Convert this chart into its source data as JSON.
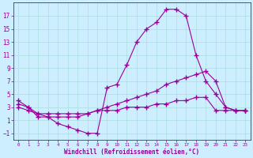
{
  "xlabel": "Windchill (Refroidissement éolien,°C)",
  "bg_color": "#cceeff",
  "line_color": "#990099",
  "grid_color": "#aadddd",
  "xlim": [
    -0.5,
    23.5
  ],
  "ylim": [
    -2,
    19
  ],
  "xticks": [
    0,
    1,
    2,
    3,
    4,
    5,
    6,
    7,
    8,
    9,
    10,
    11,
    12,
    13,
    14,
    15,
    16,
    17,
    18,
    19,
    20,
    21,
    22,
    23
  ],
  "yticks": [
    -1,
    1,
    3,
    5,
    7,
    9,
    11,
    13,
    15,
    17
  ],
  "line1_x": [
    0,
    1,
    2,
    3,
    4,
    5,
    6,
    7,
    8,
    9,
    10,
    11,
    12,
    13,
    14,
    15,
    16,
    17,
    18,
    19,
    20,
    21,
    22,
    23
  ],
  "line1_y": [
    4,
    3,
    1.5,
    1.5,
    0.5,
    0,
    -0.5,
    -1,
    -1,
    6,
    6.5,
    9.5,
    13,
    15,
    16,
    18,
    18,
    17,
    11,
    7,
    5,
    3,
    2.5,
    2.5
  ],
  "line2_x": [
    0,
    1,
    2,
    3,
    4,
    5,
    6,
    7,
    8,
    9,
    10,
    11,
    12,
    13,
    14,
    15,
    16,
    17,
    18,
    19,
    20,
    21,
    22,
    23
  ],
  "line2_y": [
    3.5,
    3,
    2,
    2,
    2,
    2,
    2,
    2,
    2.5,
    3,
    3.5,
    4,
    4.5,
    5,
    5.5,
    6.5,
    7,
    7.5,
    8,
    8.5,
    7,
    3,
    2.5,
    2.5
  ],
  "line3_x": [
    0,
    1,
    2,
    3,
    4,
    5,
    6,
    7,
    8,
    9,
    10,
    11,
    12,
    13,
    14,
    15,
    16,
    17,
    18,
    19,
    20,
    21,
    22,
    23
  ],
  "line3_y": [
    3,
    2.5,
    2,
    1.5,
    1.5,
    1.5,
    1.5,
    2,
    2.5,
    2.5,
    2.5,
    3,
    3,
    3,
    3.5,
    3.5,
    4,
    4,
    4.5,
    4.5,
    2.5,
    2.5,
    2.5,
    2.5
  ],
  "tick_fontsize": 5,
  "xlabel_fontsize": 5.5,
  "marker": "+",
  "markersize": 4,
  "linewidth": 0.8
}
